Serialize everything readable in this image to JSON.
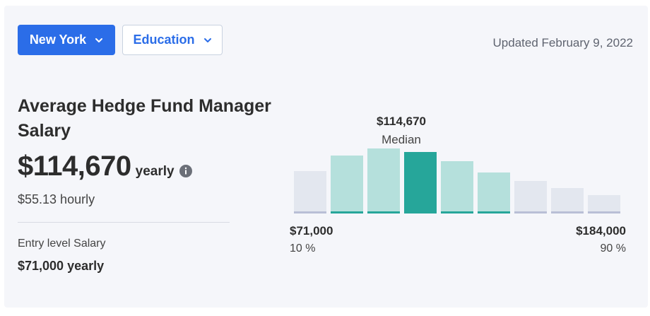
{
  "filters": {
    "location_label": "New York",
    "education_label": "Education"
  },
  "updated_text": "Updated February 9, 2022",
  "title": "Average Hedge Fund Manager Salary",
  "salary": {
    "amount": "$114,670",
    "period": "yearly",
    "hourly": "$55.13 hourly"
  },
  "entry_level": {
    "label": "Entry level Salary",
    "value": "$71,000 yearly"
  },
  "icons": {
    "info": "info-icon",
    "chevron": "chevron-down-icon"
  },
  "colors": {
    "primary": "#2b6de8",
    "median": "#26a69a",
    "mid": "#b5e0dc",
    "tail": "#e3e7ef",
    "tail_base": "#b9bfd6"
  },
  "chart_data": {
    "type": "bar",
    "median_value": "$114,670",
    "median_label": "Median",
    "low_value": "$71,000",
    "low_percentile": "10 %",
    "high_value": "$184,000",
    "high_percentile": "90 %",
    "values": [
      0.6,
      0.82,
      0.92,
      0.87,
      0.74,
      0.58,
      0.46,
      0.36,
      0.26
    ],
    "kinds": [
      "tail",
      "mid",
      "mid",
      "median",
      "mid",
      "mid",
      "tail",
      "tail",
      "tail"
    ]
  }
}
